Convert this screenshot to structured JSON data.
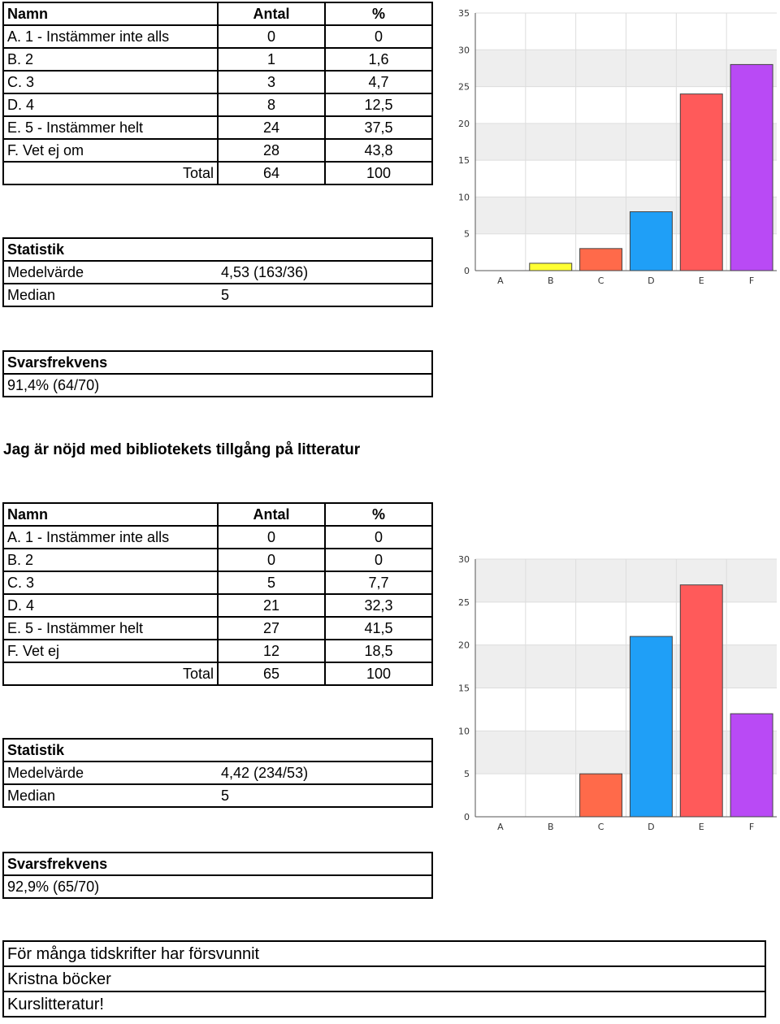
{
  "section1": {
    "table": {
      "headers": [
        "Namn",
        "Antal",
        "%"
      ],
      "rows": [
        [
          "A. 1 - Instämmer inte alls",
          "0",
          "0"
        ],
        [
          "B. 2",
          "1",
          "1,6"
        ],
        [
          "C. 3",
          "3",
          "4,7"
        ],
        [
          "D. 4",
          "8",
          "12,5"
        ],
        [
          "E. 5 - Instämmer helt",
          "24",
          "37,5"
        ],
        [
          "F. Vet ej om",
          "28",
          "43,8"
        ]
      ],
      "total": [
        "Total",
        "64",
        "100"
      ]
    },
    "statistik": {
      "title": "Statistik",
      "rows": [
        [
          "Medelvärde",
          "4,53 (163/36)"
        ],
        [
          "Median",
          "5"
        ]
      ]
    },
    "svarsfrekvens": {
      "title": "Svarsfrekvens",
      "value": "91,4% (64/70)"
    }
  },
  "question2_title": "Jag är nöjd med bibliotekets tillgång på litteratur",
  "section2": {
    "table": {
      "headers": [
        "Namn",
        "Antal",
        "%"
      ],
      "rows": [
        [
          "A. 1 - Instämmer inte alls",
          "0",
          "0"
        ],
        [
          "B. 2",
          "0",
          "0"
        ],
        [
          "C. 3",
          "5",
          "7,7"
        ],
        [
          "D. 4",
          "21",
          "32,3"
        ],
        [
          "E. 5 - Instämmer helt",
          "27",
          "41,5"
        ],
        [
          "F. Vet ej",
          "12",
          "18,5"
        ]
      ],
      "total": [
        "Total",
        "65",
        "100"
      ]
    },
    "statistik": {
      "title": "Statistik",
      "rows": [
        [
          "Medelvärde",
          "4,42 (234/53)"
        ],
        [
          "Median",
          "5"
        ]
      ]
    },
    "svarsfrekvens": {
      "title": "Svarsfrekvens",
      "value": "92,9% (65/70)"
    }
  },
  "comments": [
    "För många tidskrifter har försvunnit",
    "Kristna böcker",
    "Kurslitteratur!"
  ],
  "chart_data": [
    {
      "type": "bar",
      "categories": [
        "A",
        "B",
        "C",
        "D",
        "E",
        "F"
      ],
      "values": [
        0,
        1,
        3,
        8,
        24,
        28
      ],
      "colors": [
        "#ffff33",
        "#ffff33",
        "#ff6a4a",
        "#1f9ff7",
        "#ff5a5a",
        "#b94af5"
      ],
      "ylim": [
        0,
        35
      ],
      "yticks": [
        0,
        5,
        10,
        15,
        20,
        25,
        30,
        35
      ],
      "grid": true
    },
    {
      "type": "bar",
      "categories": [
        "A",
        "B",
        "C",
        "D",
        "E",
        "F"
      ],
      "values": [
        0,
        0,
        5,
        21,
        27,
        12
      ],
      "colors": [
        "#ffff33",
        "#ffff33",
        "#ff6a4a",
        "#1f9ff7",
        "#ff5a5a",
        "#b94af5"
      ],
      "ylim": [
        0,
        30
      ],
      "yticks": [
        0,
        5,
        10,
        15,
        20,
        25,
        30
      ],
      "grid": true
    }
  ]
}
